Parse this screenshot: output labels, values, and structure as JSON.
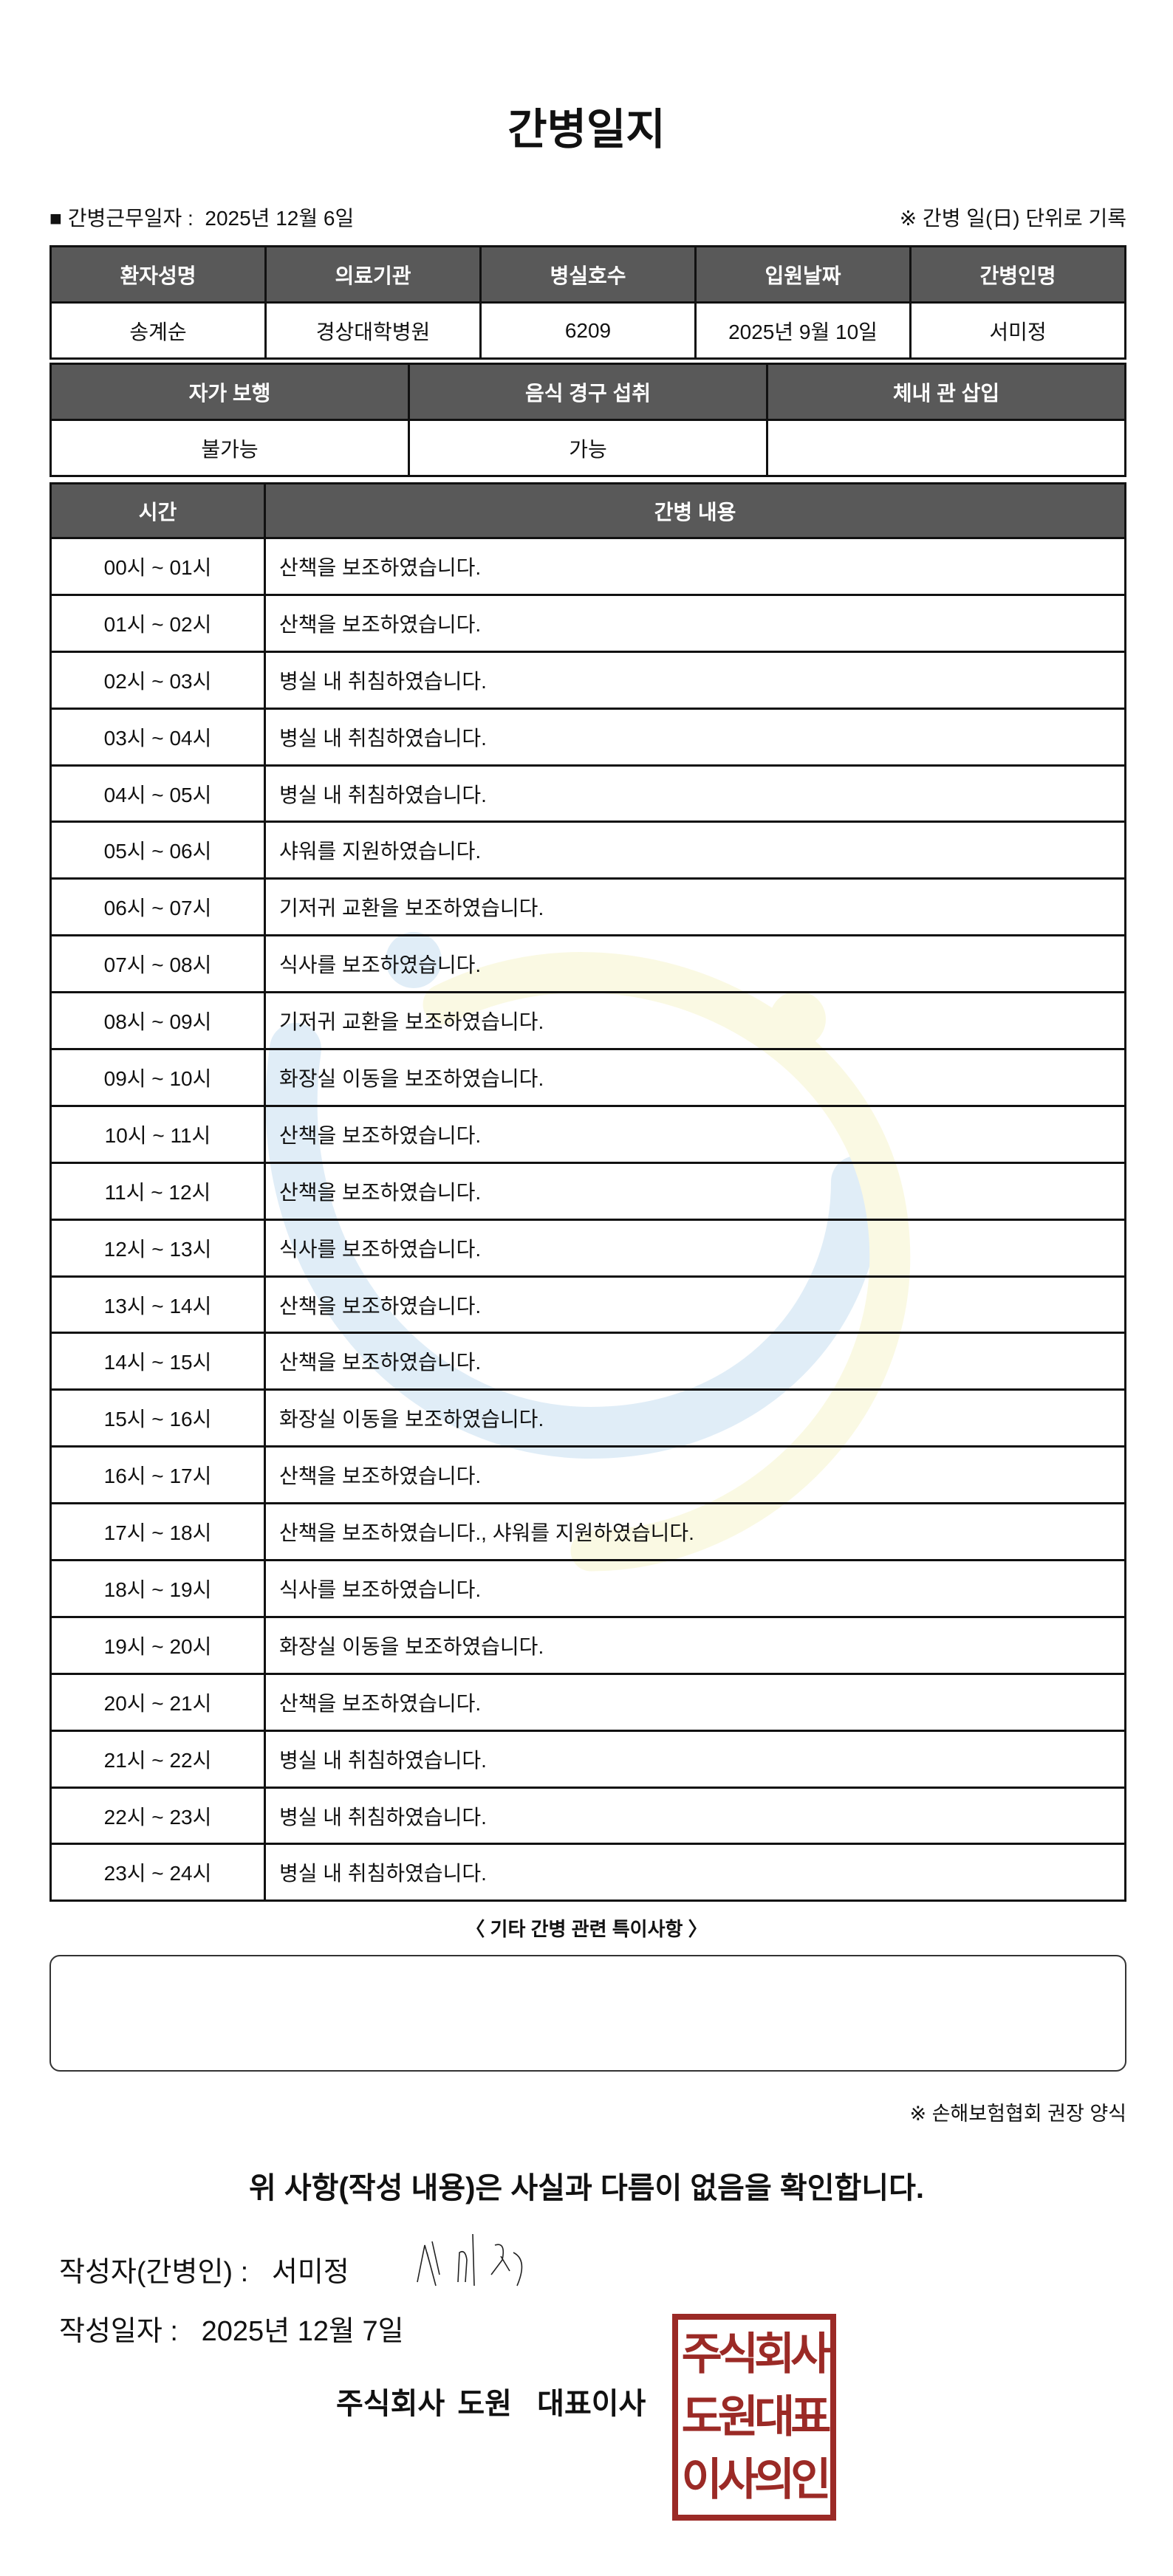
{
  "title": "간병일지",
  "work_date_label": "■ 간병근무일자 :",
  "work_date": "2025년 12월 6일",
  "record_note": "※ 간병 일(日) 단위로 기록",
  "patient": {
    "headers": [
      "환자성명",
      "의료기관",
      "병실호수",
      "입원날짜",
      "간병인명"
    ],
    "values": [
      "송계순",
      "경상대학병원",
      "6209",
      "2025년 9월 10일",
      "서미정"
    ]
  },
  "status": {
    "headers": [
      "자가 보행",
      "음식 경구 섭취",
      "체내 관 삽입"
    ],
    "values": [
      "불가능",
      "가능",
      ""
    ]
  },
  "log": {
    "headers": [
      "시간",
      "간병 내용"
    ],
    "rows": [
      [
        "00시 ~ 01시",
        "산책을 보조하였습니다."
      ],
      [
        "01시 ~ 02시",
        "산책을 보조하였습니다."
      ],
      [
        "02시 ~ 03시",
        "병실 내 취침하였습니다."
      ],
      [
        "03시 ~ 04시",
        "병실 내 취침하였습니다."
      ],
      [
        "04시 ~ 05시",
        "병실 내 취침하였습니다."
      ],
      [
        "05시 ~ 06시",
        "샤워를 지원하였습니다."
      ],
      [
        "06시 ~ 07시",
        "기저귀 교환을 보조하였습니다."
      ],
      [
        "07시 ~ 08시",
        "식사를 보조하였습니다."
      ],
      [
        "08시 ~ 09시",
        "기저귀 교환을 보조하였습니다."
      ],
      [
        "09시 ~ 10시",
        "화장실 이동을 보조하였습니다."
      ],
      [
        "10시 ~ 11시",
        "산책을 보조하였습니다."
      ],
      [
        "11시 ~ 12시",
        "산책을 보조하였습니다."
      ],
      [
        "12시 ~ 13시",
        "식사를 보조하였습니다."
      ],
      [
        "13시 ~ 14시",
        "산책을 보조하였습니다."
      ],
      [
        "14시 ~ 15시",
        "산책을 보조하였습니다."
      ],
      [
        "15시 ~ 16시",
        "화장실 이동을 보조하였습니다."
      ],
      [
        "16시 ~ 17시",
        "산책을 보조하였습니다."
      ],
      [
        "17시 ~ 18시",
        "산책을 보조하였습니다., 샤워를 지원하였습니다."
      ],
      [
        "18시 ~ 19시",
        "식사를 보조하였습니다."
      ],
      [
        "19시 ~ 20시",
        "화장실 이동을 보조하였습니다."
      ],
      [
        "20시 ~ 21시",
        "산책을 보조하였습니다."
      ],
      [
        "21시 ~ 22시",
        "병실 내 취침하였습니다."
      ],
      [
        "22시 ~ 23시",
        "병실 내 취침하였습니다."
      ],
      [
        "23시 ~ 24시",
        "병실 내 취침하였습니다."
      ]
    ]
  },
  "remarks_label": "〈 기타 간병 관련 특이사항 〉",
  "remarks": "",
  "form_note": "※ 손해보험협회 권장 양식",
  "confirm": "위 사항(작성 내용)은 사실과 다름이 없음을 확인합니다.",
  "author_label": "작성자(간병인) :",
  "author": "서미정",
  "signature": "서미정",
  "date_label": "작성일자 :",
  "date": "2025년 12월 7일",
  "company": "주식회사 도원  대표이사",
  "stamp": [
    "주식회사",
    "도원대표",
    "이사의인"
  ],
  "colors": {
    "header_bg": "#595959",
    "stamp": "#9b2a26"
  }
}
